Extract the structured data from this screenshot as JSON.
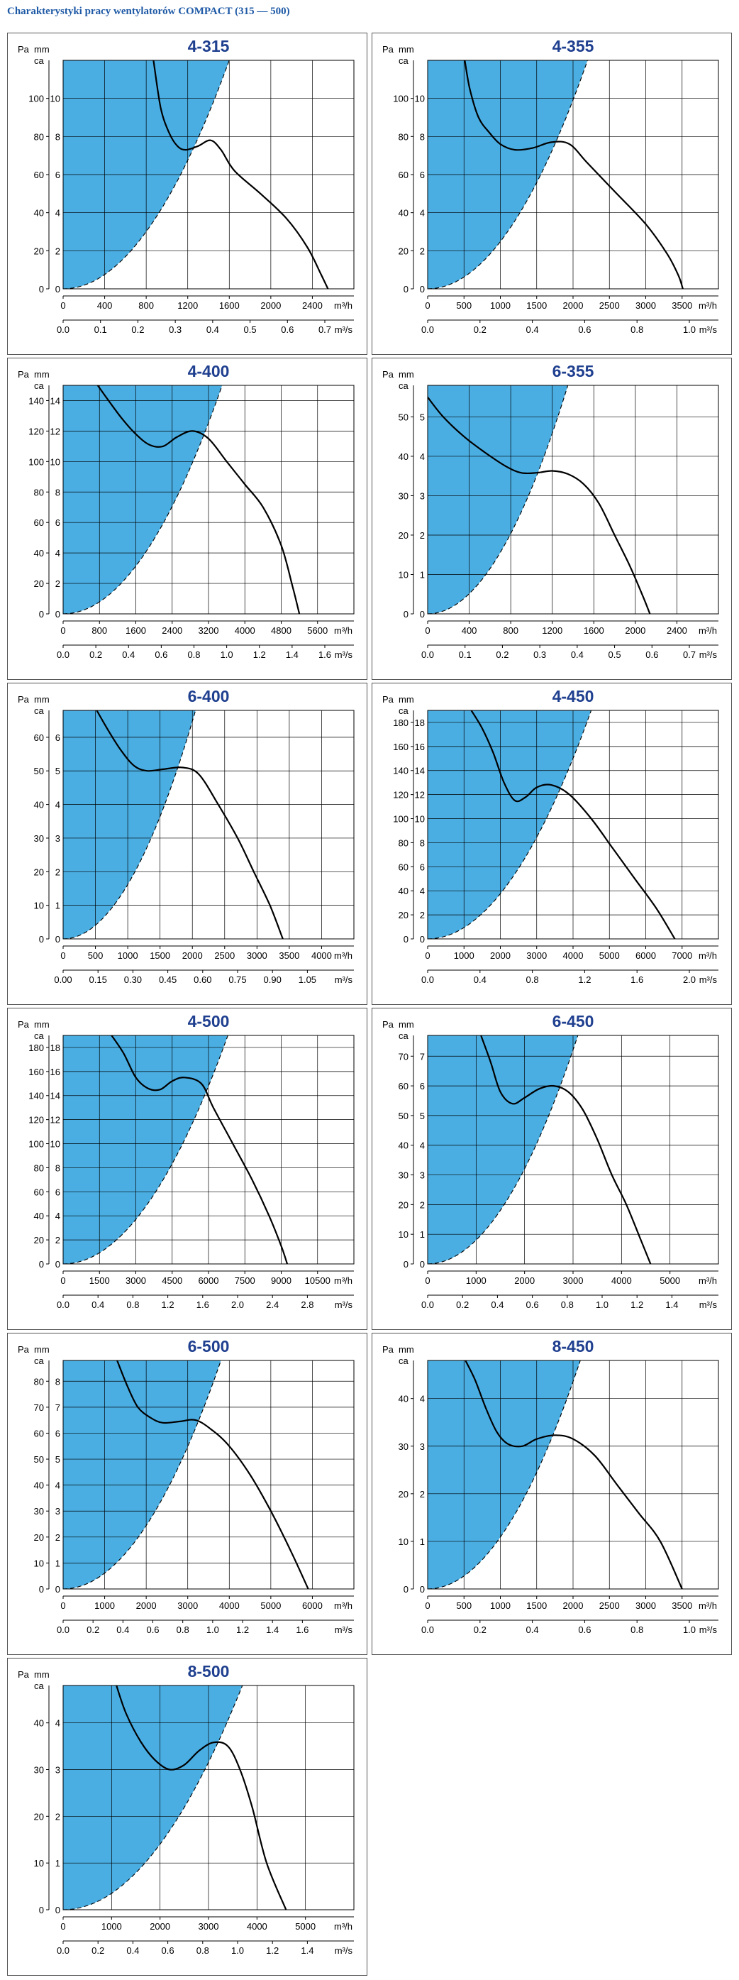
{
  "page_title": "Charakterystyki pracy wentylatorów COMPACT (315 — 500)",
  "colors": {
    "title": "#1f5aa6",
    "chart_title": "#1f3f8f",
    "fill": "#4aaee3",
    "grid": "#000000"
  },
  "chart_data": [
    {
      "type": "line",
      "title": "4-315",
      "ylabel_pa": "Pa",
      "ylabel_mm": "mm ca",
      "xunit1": "m³/h",
      "xunit2": "m³/s",
      "xlim": [
        0,
        2800
      ],
      "ylim": [
        0,
        120
      ],
      "x1_ticks": [
        "0",
        "400",
        "800",
        "1200",
        "1600",
        "2000",
        "2400"
      ],
      "x1_step": 400,
      "x2_ticks": [
        "0.0",
        "0.1",
        "0.2",
        "0.3",
        "0.4",
        "0.5",
        "0.6",
        "0.7"
      ],
      "pa_ticks": [
        "0",
        "20",
        "40",
        "60",
        "80",
        "100"
      ],
      "pa_step": 20,
      "mm_ticks": [
        "0",
        "2",
        "4",
        "6",
        "8",
        "10"
      ],
      "fill_top_x": 1600,
      "curve": [
        [
          870,
          120
        ],
        [
          940,
          95
        ],
        [
          1020,
          82
        ],
        [
          1100,
          75
        ],
        [
          1180,
          73
        ],
        [
          1300,
          75
        ],
        [
          1420,
          78
        ],
        [
          1520,
          73
        ],
        [
          1650,
          62
        ],
        [
          1900,
          50
        ],
        [
          2150,
          37
        ],
        [
          2350,
          22
        ],
        [
          2480,
          8
        ],
        [
          2550,
          0
        ]
      ]
    },
    {
      "type": "line",
      "title": "4-355",
      "ylabel_pa": "Pa",
      "ylabel_mm": "mm ca",
      "xunit1": "m³/h",
      "xunit2": "m³/s",
      "xlim": [
        0,
        4000
      ],
      "ylim": [
        0,
        120
      ],
      "x1_ticks": [
        "0",
        "500",
        "1000",
        "1500",
        "2000",
        "2500",
        "3000",
        "3500"
      ],
      "x1_step": 500,
      "x2_ticks": [
        "0.0",
        "0.2",
        "0.4",
        "0.6",
        "0.8",
        "1.0"
      ],
      "pa_ticks": [
        "0",
        "20",
        "40",
        "60",
        "80",
        "100"
      ],
      "pa_step": 20,
      "mm_ticks": [
        "0",
        "2",
        "4",
        "6",
        "8",
        "10"
      ],
      "fill_top_x": 2200,
      "curve": [
        [
          510,
          120
        ],
        [
          580,
          105
        ],
        [
          700,
          90
        ],
        [
          850,
          82
        ],
        [
          1000,
          76
        ],
        [
          1200,
          73
        ],
        [
          1450,
          74
        ],
        [
          1700,
          77
        ],
        [
          1950,
          76
        ],
        [
          2200,
          66
        ],
        [
          2600,
          50
        ],
        [
          3000,
          34
        ],
        [
          3300,
          18
        ],
        [
          3450,
          7
        ],
        [
          3510,
          0
        ]
      ]
    },
    {
      "type": "line",
      "title": "4-400",
      "ylabel_pa": "Pa",
      "ylabel_mm": "mm ca",
      "xunit1": "m³/h",
      "xunit2": "m³/s",
      "xlim": [
        0,
        6400
      ],
      "ylim": [
        0,
        150
      ],
      "x1_ticks": [
        "0",
        "800",
        "1600",
        "2400",
        "3200",
        "4000",
        "4800",
        "5600"
      ],
      "x1_step": 800,
      "x2_ticks": [
        "0.0",
        "0.2",
        "0.4",
        "0.6",
        "0.8",
        "1.0",
        "1.2",
        "1.4",
        "1.6"
      ],
      "pa_ticks": [
        "0",
        "20",
        "40",
        "60",
        "80",
        "100",
        "120",
        "140"
      ],
      "pa_step": 20,
      "mm_ticks": [
        "0",
        "2",
        "4",
        "6",
        "8",
        "10",
        "12",
        "14"
      ],
      "fill_top_x": 3500,
      "curve": [
        [
          760,
          150
        ],
        [
          1000,
          140
        ],
        [
          1300,
          128
        ],
        [
          1600,
          118
        ],
        [
          1900,
          111
        ],
        [
          2200,
          110
        ],
        [
          2500,
          116
        ],
        [
          2850,
          120
        ],
        [
          3200,
          115
        ],
        [
          3600,
          100
        ],
        [
          4000,
          85
        ],
        [
          4400,
          70
        ],
        [
          4800,
          45
        ],
        [
          5050,
          18
        ],
        [
          5200,
          0
        ]
      ]
    },
    {
      "type": "line",
      "title": "6-355",
      "ylabel_pa": "Pa",
      "ylabel_mm": "mm ca",
      "xunit1": "m³/h",
      "xunit2": "m³/s",
      "xlim": [
        0,
        2800
      ],
      "ylim": [
        0,
        58
      ],
      "x1_ticks": [
        "0",
        "400",
        "800",
        "1200",
        "1600",
        "2000",
        "2400"
      ],
      "x1_step": 400,
      "x2_ticks": [
        "0.0",
        "0.1",
        "0.2",
        "0.3",
        "0.4",
        "0.5",
        "0.6",
        "0.7"
      ],
      "pa_ticks": [
        "0",
        "10",
        "20",
        "30",
        "40",
        "50"
      ],
      "pa_step": 10,
      "mm_ticks": [
        "0",
        "1",
        "2",
        "3",
        "4",
        "5"
      ],
      "fill_top_x": 1350,
      "curve": [
        [
          0,
          55
        ],
        [
          150,
          50
        ],
        [
          350,
          45
        ],
        [
          550,
          41
        ],
        [
          750,
          37.5
        ],
        [
          900,
          35.8
        ],
        [
          1050,
          35.8
        ],
        [
          1200,
          36.3
        ],
        [
          1350,
          35.5
        ],
        [
          1500,
          33
        ],
        [
          1650,
          28
        ],
        [
          1800,
          20
        ],
        [
          1950,
          12
        ],
        [
          2080,
          4
        ],
        [
          2140,
          0
        ]
      ]
    },
    {
      "type": "line",
      "title": "6-400",
      "ylabel_pa": "Pa",
      "ylabel_mm": "mm ca",
      "xunit1": "m³/h",
      "xunit2": "m³/s",
      "xlim": [
        0,
        4500
      ],
      "ylim": [
        0,
        68
      ],
      "x1_ticks": [
        "0",
        "500",
        "1000",
        "1500",
        "2000",
        "2500",
        "3000",
        "3500",
        "4000"
      ],
      "x1_step": 500,
      "x2_ticks": [
        "0.00",
        "0.15",
        "0.30",
        "0.45",
        "0.60",
        "0.75",
        "0.90",
        "1.05"
      ],
      "pa_ticks": [
        "0",
        "10",
        "20",
        "30",
        "40",
        "50",
        "60"
      ],
      "pa_step": 10,
      "mm_ticks": [
        "0",
        "1",
        "2",
        "3",
        "4",
        "5",
        "6"
      ],
      "fill_top_x": 2050,
      "curve": [
        [
          520,
          68
        ],
        [
          700,
          62
        ],
        [
          900,
          56
        ],
        [
          1100,
          51.5
        ],
        [
          1300,
          50
        ],
        [
          1550,
          50.5
        ],
        [
          1850,
          51
        ],
        [
          2100,
          49
        ],
        [
          2400,
          40
        ],
        [
          2700,
          30
        ],
        [
          2950,
          20
        ],
        [
          3200,
          10
        ],
        [
          3400,
          0
        ]
      ]
    },
    {
      "type": "line",
      "title": "4-450",
      "ylabel_pa": "Pa",
      "ylabel_mm": "mm ca",
      "xunit1": "m³/h",
      "xunit2": "m³/s",
      "xlim": [
        0,
        8000
      ],
      "ylim": [
        0,
        190
      ],
      "x1_ticks": [
        "0",
        "1000",
        "2000",
        "3000",
        "4000",
        "5000",
        "6000",
        "7000"
      ],
      "x1_step": 1000,
      "x2_ticks": [
        "0.0",
        "0.4",
        "0.8",
        "1.2",
        "1.6",
        "2.0"
      ],
      "pa_ticks": [
        "0",
        "20",
        "40",
        "60",
        "80",
        "100",
        "120",
        "140",
        "160",
        "180"
      ],
      "pa_step": 20,
      "mm_ticks": [
        "0",
        "2",
        "4",
        "6",
        "8",
        "10",
        "12",
        "14",
        "16",
        "18"
      ],
      "fill_top_x": 4500,
      "curve": [
        [
          1200,
          190
        ],
        [
          1500,
          175
        ],
        [
          1800,
          155
        ],
        [
          2100,
          130
        ],
        [
          2400,
          115
        ],
        [
          2700,
          118
        ],
        [
          3000,
          126
        ],
        [
          3400,
          128
        ],
        [
          3900,
          120
        ],
        [
          4500,
          100
        ],
        [
          5100,
          75
        ],
        [
          5700,
          50
        ],
        [
          6300,
          25
        ],
        [
          6800,
          0
        ]
      ]
    },
    {
      "type": "line",
      "title": "4-500",
      "ylabel_pa": "Pa",
      "ylabel_mm": "mm ca",
      "xunit1": "m³/h",
      "xunit2": "m³/s",
      "xlim": [
        0,
        12000
      ],
      "ylim": [
        0,
        190
      ],
      "x1_ticks": [
        "0",
        "1500",
        "3000",
        "4500",
        "6000",
        "7500",
        "9000",
        "10500"
      ],
      "x1_step": 1500,
      "x2_ticks": [
        "0.0",
        "0.4",
        "0.8",
        "1.2",
        "1.6",
        "2.0",
        "2.4",
        "2.8"
      ],
      "pa_ticks": [
        "0",
        "20",
        "40",
        "60",
        "80",
        "100",
        "120",
        "140",
        "160",
        "180"
      ],
      "pa_step": 20,
      "mm_ticks": [
        "0",
        "2",
        "4",
        "6",
        "8",
        "10",
        "12",
        "14",
        "16",
        "18"
      ],
      "fill_top_x": 6800,
      "curve": [
        [
          2000,
          190
        ],
        [
          2500,
          175
        ],
        [
          3000,
          155
        ],
        [
          3500,
          146
        ],
        [
          4000,
          145
        ],
        [
          4500,
          152
        ],
        [
          5000,
          155
        ],
        [
          5700,
          150
        ],
        [
          6200,
          130
        ],
        [
          7000,
          100
        ],
        [
          7800,
          70
        ],
        [
          8500,
          40
        ],
        [
          9000,
          15
        ],
        [
          9250,
          0
        ]
      ]
    },
    {
      "type": "line",
      "title": "6-450",
      "ylabel_pa": "Pa",
      "ylabel_mm": "mm ca",
      "xunit1": "m³/h",
      "xunit2": "m³/s",
      "xlim": [
        0,
        6000
      ],
      "ylim": [
        0,
        77
      ],
      "x1_ticks": [
        "0",
        "1000",
        "2000",
        "3000",
        "4000",
        "5000"
      ],
      "x1_step": 1000,
      "x2_ticks": [
        "0.0",
        "0.2",
        "0.4",
        "0.6",
        "0.8",
        "1.0",
        "1.2",
        "1.4"
      ],
      "pa_ticks": [
        "0",
        "10",
        "20",
        "30",
        "40",
        "50",
        "60",
        "70"
      ],
      "pa_step": 10,
      "mm_ticks": [
        "0",
        "1",
        "2",
        "3",
        "4",
        "5",
        "6",
        "7"
      ],
      "fill_top_x": 3100,
      "curve": [
        [
          1100,
          77
        ],
        [
          1300,
          68
        ],
        [
          1500,
          58
        ],
        [
          1750,
          54
        ],
        [
          2000,
          56
        ],
        [
          2300,
          59
        ],
        [
          2600,
          60
        ],
        [
          2900,
          58
        ],
        [
          3200,
          52
        ],
        [
          3500,
          42
        ],
        [
          3800,
          30
        ],
        [
          4100,
          20
        ],
        [
          4400,
          8
        ],
        [
          4600,
          0
        ]
      ]
    },
    {
      "type": "line",
      "title": "6-500",
      "ylabel_pa": "Pa",
      "ylabel_mm": "mm ca",
      "xunit1": "m³/h",
      "xunit2": "m³/s",
      "xlim": [
        0,
        7000
      ],
      "ylim": [
        0,
        88
      ],
      "x1_ticks": [
        "0",
        "1000",
        "2000",
        "3000",
        "4000",
        "5000",
        "6000"
      ],
      "x1_step": 1000,
      "x2_ticks": [
        "0.0",
        "0.2",
        "0.4",
        "0.6",
        "0.8",
        "1.0",
        "1.2",
        "1.4",
        "1.6"
      ],
      "pa_ticks": [
        "0",
        "10",
        "20",
        "30",
        "40",
        "50",
        "60",
        "70",
        "80"
      ],
      "pa_step": 10,
      "mm_ticks": [
        "0",
        "1",
        "2",
        "3",
        "4",
        "5",
        "6",
        "7",
        "8"
      ],
      "fill_top_x": 3800,
      "curve": [
        [
          1300,
          88
        ],
        [
          1550,
          78
        ],
        [
          1800,
          70
        ],
        [
          2100,
          66
        ],
        [
          2400,
          64
        ],
        [
          2800,
          64.5
        ],
        [
          3200,
          65
        ],
        [
          3600,
          61
        ],
        [
          4000,
          55
        ],
        [
          4500,
          44
        ],
        [
          5000,
          30
        ],
        [
          5500,
          14
        ],
        [
          5900,
          0
        ]
      ]
    },
    {
      "type": "line",
      "title": "8-450",
      "ylabel_pa": "Pa",
      "ylabel_mm": "mm ca",
      "xunit1": "m³/h",
      "xunit2": "m³/s",
      "xlim": [
        0,
        4000
      ],
      "ylim": [
        0,
        48
      ],
      "x1_ticks": [
        "0",
        "500",
        "1000",
        "1500",
        "2000",
        "2500",
        "3000",
        "3500"
      ],
      "x1_step": 500,
      "x2_ticks": [
        "0.0",
        "0.2",
        "0.4",
        "0.6",
        "0.8",
        "1.0"
      ],
      "pa_ticks": [
        "0",
        "10",
        "20",
        "30",
        "40"
      ],
      "pa_step": 10,
      "mm_ticks": [
        "0",
        "1",
        "2",
        "3",
        "4"
      ],
      "fill_top_x": 2100,
      "curve": [
        [
          520,
          48
        ],
        [
          650,
          44
        ],
        [
          800,
          38
        ],
        [
          950,
          33
        ],
        [
          1100,
          30.5
        ],
        [
          1300,
          30
        ],
        [
          1500,
          31.5
        ],
        [
          1750,
          32.3
        ],
        [
          2000,
          31.5
        ],
        [
          2300,
          28
        ],
        [
          2600,
          22
        ],
        [
          2900,
          16
        ],
        [
          3200,
          10
        ],
        [
          3500,
          0
        ]
      ]
    },
    {
      "type": "line",
      "title": "8-500",
      "ylabel_pa": "Pa",
      "ylabel_mm": "mm ca",
      "xunit1": "m³/h",
      "xunit2": "m³/s",
      "xlim": [
        0,
        6000
      ],
      "ylim": [
        0,
        48
      ],
      "x1_ticks": [
        "0",
        "1000",
        "2000",
        "3000",
        "4000",
        "5000"
      ],
      "x1_step": 1000,
      "x2_ticks": [
        "0.0",
        "0.2",
        "0.4",
        "0.6",
        "0.8",
        "1.0",
        "1.2",
        "1.4"
      ],
      "pa_ticks": [
        "0",
        "10",
        "20",
        "30",
        "40"
      ],
      "pa_step": 10,
      "mm_ticks": [
        "0",
        "1",
        "2",
        "3",
        "4"
      ],
      "fill_top_x": 3700,
      "curve": [
        [
          1100,
          48
        ],
        [
          1300,
          42
        ],
        [
          1600,
          36
        ],
        [
          1900,
          32
        ],
        [
          2200,
          30
        ],
        [
          2500,
          31
        ],
        [
          2800,
          34
        ],
        [
          3100,
          35.8
        ],
        [
          3400,
          35
        ],
        [
          3650,
          30
        ],
        [
          3900,
          22
        ],
        [
          4200,
          10
        ],
        [
          4600,
          0
        ]
      ]
    }
  ]
}
